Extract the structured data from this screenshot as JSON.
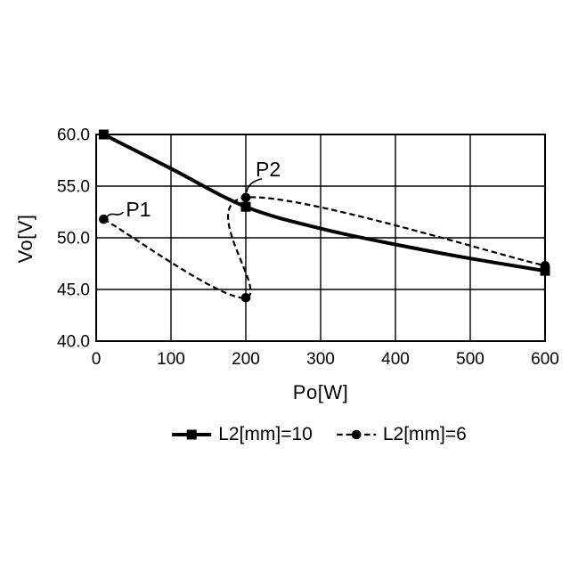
{
  "figure": {
    "background": "#ffffff"
  },
  "chart_data": {
    "type": "line",
    "title": "",
    "xlabel": "Po[W]",
    "ylabel": "Vo[V]",
    "xlim": [
      0,
      600
    ],
    "ylim": [
      40,
      60
    ],
    "grid": true,
    "axis_color": "#000000",
    "legend_position": "bottom",
    "x_ticks": {
      "values": [
        0,
        100,
        200,
        300,
        400,
        500,
        600
      ],
      "labels": [
        "0",
        "100",
        "200",
        "300",
        "400",
        "500",
        "600"
      ]
    },
    "y_ticks": {
      "values": [
        60,
        55,
        50,
        45,
        40
      ],
      "labels": [
        "60.0",
        "55.0",
        "50.0",
        "45.0",
        "40.0"
      ]
    },
    "series": [
      {
        "name": "L2[mm]=10",
        "line_style": "solid",
        "marker": "square",
        "color": "#000000",
        "points": [
          [
            10,
            60
          ],
          [
            200,
            53
          ],
          [
            600,
            46.8
          ]
        ],
        "curve_points": [
          [
            10,
            60
          ],
          [
            100,
            56.7
          ],
          [
            200,
            53
          ],
          [
            300,
            50.9
          ],
          [
            400,
            49.35
          ],
          [
            500,
            48.0
          ],
          [
            600,
            46.8
          ]
        ]
      },
      {
        "name": "L2[mm]=6",
        "line_style": "dashed",
        "marker": "circle",
        "color": "#000000",
        "points": [
          [
            10,
            51.8
          ],
          [
            200,
            44.2
          ],
          [
            200,
            53.9
          ],
          [
            600,
            47.3
          ]
        ],
        "curve_points": [
          [
            10,
            51.8
          ],
          [
            200,
            44.2
          ],
          [
            200,
            53.9
          ],
          [
            600,
            47.3
          ]
        ]
      }
    ],
    "annotations": [
      {
        "label": "P1",
        "point": [
          10,
          51.8
        ],
        "text_offset": [
          25,
          -3
        ],
        "leader": "wave",
        "leader_start": [
          4,
          -3
        ],
        "leader_end": [
          22,
          -8
        ]
      },
      {
        "label": "P2",
        "point": [
          200,
          53.9
        ],
        "text_offset": [
          11,
          -24
        ],
        "leader": "arc",
        "leader_start": [
          1,
          -6
        ],
        "leader_end": [
          18,
          -21
        ]
      }
    ]
  }
}
